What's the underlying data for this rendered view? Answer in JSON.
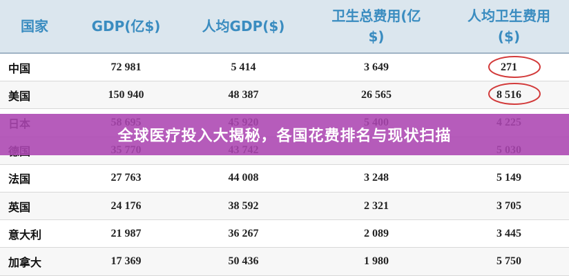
{
  "table": {
    "header": [
      "国家",
      "GDP(亿$)",
      "人均GDP($)",
      "卫生总费用(亿$)",
      "人均卫生费用($)"
    ],
    "rows": [
      [
        "中国",
        "72 981",
        "5 414",
        "3 649",
        "271"
      ],
      [
        "美国",
        "150 940",
        "48 387",
        "26 565",
        "8 516"
      ],
      [
        "日本",
        "58 695",
        "45 920",
        "5 400",
        "4 225"
      ],
      [
        "德国",
        "35 770",
        "43 742",
        null,
        "5 030"
      ],
      [
        "法国",
        "27 763",
        "44 008",
        "3 248",
        "5 149"
      ],
      [
        "英国",
        "24 176",
        "38 592",
        "2 321",
        "3 705"
      ],
      [
        "意大利",
        "21 987",
        "36 267",
        "2 089",
        "3 445"
      ],
      [
        "加拿大",
        "17 369",
        "50 436",
        "1 980",
        "5 750"
      ]
    ]
  },
  "banner": {
    "title": "全球医疗投入大揭秘，各国花费排名与现状扫描"
  }
}
